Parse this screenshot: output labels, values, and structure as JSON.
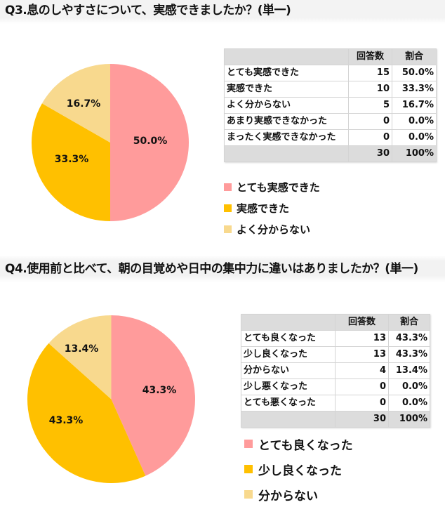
{
  "colors": {
    "pink": "#FF9B9B",
    "gold": "#FFC000",
    "wheat": "#F8D98E",
    "table_header_bg": "#DCDCDC"
  },
  "q3": {
    "title": "Q3.息のしやすさについて、実感できましたか？(単一)",
    "table": {
      "headers": [
        "",
        "回答数",
        "割合"
      ],
      "rows": [
        {
          "label": "とても実感できた",
          "count": "15",
          "pct": "50.0%"
        },
        {
          "label": "実感できた",
          "count": "10",
          "pct": "33.3%"
        },
        {
          "label": "よく分からない",
          "count": "5",
          "pct": "16.7%"
        },
        {
          "label": "あまり実感できなかった",
          "count": "0",
          "pct": "0.0%"
        },
        {
          "label": "まったく実感できなかった",
          "count": "0",
          "pct": "0.0%"
        }
      ],
      "total": {
        "label": "",
        "count": "30",
        "pct": "100%"
      }
    },
    "pie_labels": [
      "50.0%",
      "33.3%",
      "16.7%"
    ],
    "legend": [
      "とても実感できた",
      "実感できた",
      "よく分からない"
    ]
  },
  "q4": {
    "title": "Q4.使用前と比べて、朝の目覚めや日中の集中力に違いはありましたか？(単一)",
    "table": {
      "headers": [
        "",
        "回答数",
        "割合"
      ],
      "rows": [
        {
          "label": "とても良くなった",
          "count": "13",
          "pct": "43.3%"
        },
        {
          "label": "少し良くなった",
          "count": "13",
          "pct": "43.3%"
        },
        {
          "label": "分からない",
          "count": "4",
          "pct": "13.4%"
        },
        {
          "label": "少し悪くなった",
          "count": "0",
          "pct": "0.0%"
        },
        {
          "label": "とても悪くなった",
          "count": "0",
          "pct": "0.0%"
        }
      ],
      "total": {
        "label": "",
        "count": "30",
        "pct": "100%"
      }
    },
    "pie_labels": [
      "43.3%",
      "43.3%",
      "13.4%"
    ],
    "legend": [
      "とても良くなった",
      "少し良くなった",
      "分からない"
    ]
  },
  "chart_data": [
    {
      "type": "pie",
      "title": "Q3.息のしやすさについて、実感できましたか？(単一)",
      "categories": [
        "とても実感できた",
        "実感できた",
        "よく分からない",
        "あまり実感できなかった",
        "まったく実感できなかった"
      ],
      "values": [
        50.0,
        33.3,
        16.7,
        0.0,
        0.0
      ],
      "counts": [
        15,
        10,
        5,
        0,
        0
      ],
      "total": 30,
      "colors": [
        "#FF9B9B",
        "#FFC000",
        "#F8D98E"
      ],
      "legend": [
        "とても実感できた",
        "実感できた",
        "よく分からない"
      ],
      "legend_position": "right-bottom",
      "start_angle": "12 o'clock, clockwise"
    },
    {
      "type": "pie",
      "title": "Q4.使用前と比べて、朝の目覚めや日中の集中力に違いはありましたか？(単一)",
      "categories": [
        "とても良くなった",
        "少し良くなった",
        "分からない",
        "少し悪くなった",
        "とても悪くなった"
      ],
      "values": [
        43.3,
        43.3,
        13.4,
        0.0,
        0.0
      ],
      "counts": [
        13,
        13,
        4,
        0,
        0
      ],
      "total": 30,
      "colors": [
        "#FF9B9B",
        "#FFC000",
        "#F8D98E"
      ],
      "legend": [
        "とても良くなった",
        "少し良くなった",
        "分からない"
      ],
      "legend_position": "right-bottom",
      "start_angle": "12 o'clock, clockwise"
    }
  ]
}
